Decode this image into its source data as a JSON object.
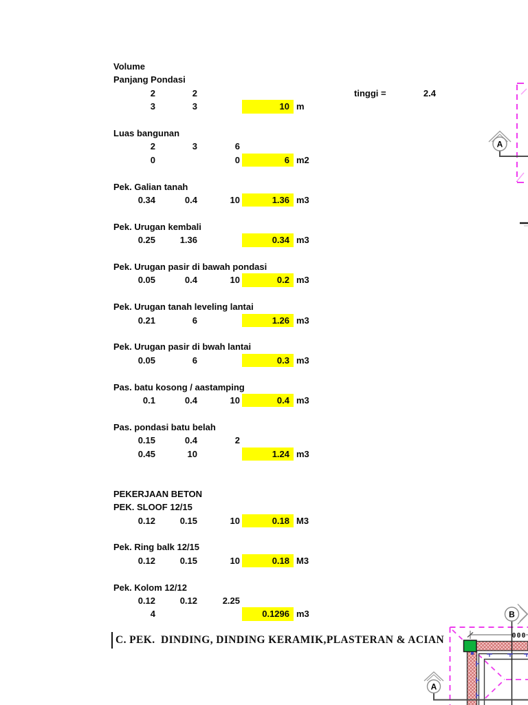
{
  "sheet": {
    "rows": [
      {
        "label": "Volume"
      },
      {
        "label": "Panjang Pondasi"
      },
      {
        "c1": "2",
        "c2": "2",
        "tinggi_label": "tinggi =",
        "tinggi_value": "2.4"
      },
      {
        "c1": "3",
        "c2": "3",
        "hl": "10",
        "unit": "m"
      },
      {},
      {
        "label": "Luas bangunan"
      },
      {
        "c1": "2",
        "c2": "3",
        "c3": "6"
      },
      {
        "c1": "0",
        "c3": "0",
        "hl": "6",
        "unit": "m2"
      },
      {},
      {
        "label": "Pek. Galian tanah"
      },
      {
        "c1": "0.34",
        "c2": "0.4",
        "c3": "10",
        "hl": "1.36",
        "unit": "m3"
      },
      {},
      {
        "label": "Pek. Urugan kembali"
      },
      {
        "c1": "0.25",
        "c2": "1.36",
        "hl": "0.34",
        "unit": "m3"
      },
      {},
      {
        "label": "Pek. Urugan pasir di bawah pondasi"
      },
      {
        "c1": "0.05",
        "c2": "0.4",
        "c3": "10",
        "hl": "0.2",
        "unit": "m3"
      },
      {},
      {
        "label": "Pek. Urugan tanah leveling lantai"
      },
      {
        "c1": "0.21",
        "c2": "6",
        "hl": "1.26",
        "unit": "m3"
      },
      {},
      {
        "label": "Pek. Urugan pasir di bwah lantai"
      },
      {
        "c1": "0.05",
        "c2": "6",
        "hl": "0.3",
        "unit": "m3"
      },
      {},
      {
        "label": "Pas. batu kosong / aastamping"
      },
      {
        "c1": "0.1",
        "c2": "0.4",
        "c3": "10",
        "hl": "0.4",
        "unit": "m3"
      },
      {},
      {
        "label": "Pas. pondasi batu belah"
      },
      {
        "c1": "0.15",
        "c2": "0.4",
        "c3": "2"
      },
      {
        "c1": "0.45",
        "c2": "10",
        "hl": "1.24",
        "unit": "m3"
      },
      {},
      {},
      {
        "label": "PEKERJAAN BETON"
      },
      {
        "label": "PEK. SLOOF 12/15"
      },
      {
        "c1": "0.12",
        "c2": "0.15",
        "c3": "10",
        "hl": "0.18",
        "unit": "M3"
      },
      {},
      {
        "label": "Pek. Ring balk 12/15"
      },
      {
        "c1": "0.12",
        "c2": "0.15",
        "c3": "10",
        "hl": "0.18",
        "unit": "M3"
      },
      {},
      {
        "label": "Pek. Kolom 12/12"
      },
      {
        "c1": "0.12",
        "c2": "0.12",
        "c3": "2.25"
      },
      {
        "c1": "4",
        "hl": "0.1296",
        "unit": "m3"
      }
    ]
  },
  "section_title": "C. PEK.  DINDING, DINDING KERAMIK,PLASTERAN & ACIAN",
  "cad": {
    "marker_top": "A",
    "marker_b": "B",
    "marker_bottom": "A",
    "dimension_text": "000"
  },
  "colors": {
    "highlight": "#ffff00",
    "magenta_dashed": "#ee3cee",
    "wall_fill": "#f4c6c6",
    "wall_hatch": "#c96060",
    "column_green": "#0db13c",
    "blue_mark": "#4646c0"
  }
}
